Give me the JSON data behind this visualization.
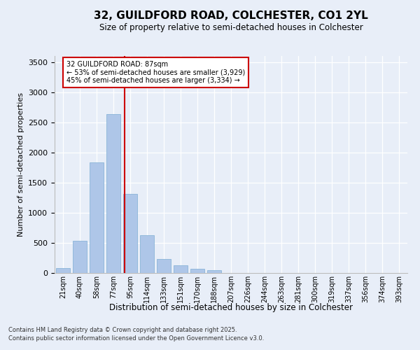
{
  "title_line1": "32, GUILDFORD ROAD, COLCHESTER, CO1 2YL",
  "title_line2": "Size of property relative to semi-detached houses in Colchester",
  "xlabel": "Distribution of semi-detached houses by size in Colchester",
  "ylabel": "Number of semi-detached properties",
  "categories": [
    "21sqm",
    "40sqm",
    "58sqm",
    "77sqm",
    "95sqm",
    "114sqm",
    "133sqm",
    "151sqm",
    "170sqm",
    "188sqm",
    "207sqm",
    "226sqm",
    "244sqm",
    "263sqm",
    "281sqm",
    "300sqm",
    "319sqm",
    "337sqm",
    "356sqm",
    "374sqm",
    "393sqm"
  ],
  "values": [
    80,
    530,
    1840,
    2640,
    1310,
    630,
    230,
    130,
    75,
    45,
    0,
    0,
    0,
    0,
    0,
    0,
    0,
    0,
    0,
    0,
    0
  ],
  "bar_color": "#aec6e8",
  "bar_edge_color": "#8ab4d8",
  "vline_x": 3.67,
  "vline_color": "#cc0000",
  "annotation_title": "32 GUILDFORD ROAD: 87sqm",
  "annotation_line2": "← 53% of semi-detached houses are smaller (3,929)",
  "annotation_line3": "45% of semi-detached houses are larger (3,334) →",
  "annotation_box_color": "#cc0000",
  "ylim": [
    0,
    3600
  ],
  "yticks": [
    0,
    500,
    1000,
    1500,
    2000,
    2500,
    3000,
    3500
  ],
  "footnote1": "Contains HM Land Registry data © Crown copyright and database right 2025.",
  "footnote2": "Contains public sector information licensed under the Open Government Licence v3.0.",
  "bg_color": "#e8eef8",
  "plot_bg_color": "#e8eef8"
}
